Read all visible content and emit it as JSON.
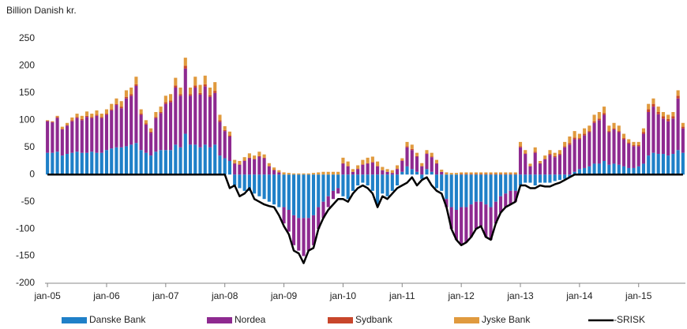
{
  "chart_data": {
    "type": "bar",
    "stacked": true,
    "title": "Billion Danish kr.",
    "categories": [
      "jan-05",
      null,
      null,
      null,
      null,
      null,
      null,
      null,
      null,
      null,
      null,
      null,
      "jan-06",
      null,
      null,
      null,
      null,
      null,
      null,
      null,
      null,
      null,
      null,
      null,
      "jan-07",
      null,
      null,
      null,
      null,
      null,
      null,
      null,
      null,
      null,
      null,
      null,
      "jan-08",
      null,
      null,
      null,
      null,
      null,
      null,
      null,
      null,
      null,
      null,
      null,
      "jan-09",
      null,
      null,
      null,
      null,
      null,
      null,
      null,
      null,
      null,
      null,
      null,
      "jan-10",
      null,
      null,
      null,
      null,
      null,
      null,
      null,
      null,
      null,
      null,
      null,
      "jan-11",
      null,
      null,
      null,
      null,
      null,
      null,
      null,
      null,
      null,
      null,
      null,
      "jan-12",
      null,
      null,
      null,
      null,
      null,
      null,
      null,
      null,
      null,
      null,
      null,
      "jan-13",
      null,
      null,
      null,
      null,
      null,
      null,
      null,
      null,
      null,
      null,
      null,
      "jan-14",
      null,
      null,
      null,
      null,
      null,
      null,
      null,
      null,
      null,
      null,
      null,
      "jan-15",
      null,
      null,
      null,
      null,
      null,
      null,
      null,
      null,
      null
    ],
    "series": [
      {
        "name": "Danske Bank",
        "color": "#1f80c8",
        "values": [
          40,
          40,
          42,
          35,
          38,
          40,
          42,
          40,
          40,
          42,
          40,
          40,
          45,
          48,
          50,
          50,
          52,
          55,
          58,
          45,
          40,
          35,
          42,
          45,
          45,
          45,
          55,
          50,
          75,
          55,
          55,
          50,
          55,
          50,
          55,
          35,
          30,
          25,
          -20,
          -25,
          -30,
          -30,
          -35,
          -40,
          -45,
          -50,
          -55,
          -60,
          -60,
          -65,
          -75,
          -80,
          -80,
          -80,
          -75,
          -60,
          -50,
          -40,
          -30,
          -25,
          -40,
          -45,
          -30,
          -20,
          -15,
          -20,
          -30,
          -55,
          -35,
          -40,
          -30,
          -20,
          5,
          15,
          10,
          5,
          -8,
          10,
          5,
          -25,
          -30,
          -45,
          -60,
          -65,
          -60,
          -60,
          -55,
          -50,
          -50,
          -55,
          -60,
          -50,
          -40,
          -35,
          -30,
          -30,
          -20,
          -15,
          -15,
          -20,
          -15,
          -15,
          -15,
          -12,
          -10,
          -8,
          -5,
          5,
          10,
          12,
          15,
          20,
          20,
          25,
          18,
          20,
          18,
          15,
          12,
          12,
          15,
          20,
          35,
          40,
          38,
          38,
          35,
          38,
          45,
          40
        ]
      },
      {
        "name": "Nordea",
        "color": "#8e2a90",
        "values": [
          58,
          56,
          62,
          48,
          52,
          58,
          62,
          60,
          66,
          62,
          68,
          64,
          65,
          70,
          78,
          72,
          88,
          90,
          105,
          65,
          52,
          42,
          62,
          68,
          85,
          88,
          105,
          95,
          120,
          90,
          105,
          97,
          107,
          93,
          95,
          62,
          50,
          45,
          20,
          18,
          25,
          30,
          28,
          33,
          30,
          15,
          8,
          4,
          -30,
          -40,
          -55,
          -60,
          -70,
          -60,
          -55,
          -40,
          -30,
          -20,
          -15,
          -10,
          20,
          15,
          5,
          10,
          18,
          20,
          22,
          15,
          8,
          5,
          3,
          10,
          20,
          35,
          35,
          28,
          15,
          28,
          27,
          20,
          5,
          -15,
          -40,
          -55,
          -70,
          -65,
          -60,
          -50,
          -45,
          -60,
          -60,
          -40,
          -30,
          -25,
          -25,
          -20,
          50,
          38,
          15,
          40,
          20,
          28,
          36,
          32,
          36,
          50,
          55,
          60,
          55,
          60,
          63,
          75,
          80,
          85,
          60,
          63,
          60,
          50,
          45,
          40,
          37,
          55,
          80,
          85,
          73,
          65,
          63,
          65,
          95,
          45
        ]
      },
      {
        "name": "Sydbank",
        "color": "#c8462b",
        "values": [
          1,
          1,
          2,
          1,
          1,
          2,
          2,
          2,
          2,
          2,
          2,
          2,
          2,
          2,
          2,
          3,
          3,
          3,
          3,
          2,
          2,
          2,
          2,
          2,
          3,
          3,
          4,
          3,
          5,
          3,
          4,
          3,
          4,
          3,
          4,
          3,
          2,
          2,
          1,
          1,
          1,
          1,
          1,
          1,
          1,
          1,
          1,
          0,
          0,
          0,
          0,
          0,
          0,
          0,
          0,
          0,
          0,
          0,
          0,
          0,
          1,
          1,
          0,
          1,
          1,
          1,
          1,
          1,
          0,
          0,
          0,
          1,
          1,
          2,
          2,
          1,
          1,
          1,
          1,
          1,
          0,
          0,
          0,
          0,
          1,
          1,
          1,
          1,
          1,
          1,
          1,
          1,
          1,
          1,
          1,
          1,
          2,
          1,
          1,
          2,
          1,
          1,
          2,
          2,
          2,
          2,
          3,
          3,
          2,
          3,
          2,
          3,
          3,
          3,
          2,
          2,
          2,
          2,
          2,
          2,
          2,
          3,
          5,
          5,
          4,
          4,
          4,
          4,
          5,
          3
        ]
      },
      {
        "name": "Jyske Bank",
        "color": "#e09a3e",
        "values": [
          1,
          1,
          2,
          4,
          4,
          5,
          6,
          6,
          8,
          6,
          8,
          6,
          8,
          10,
          10,
          10,
          12,
          12,
          14,
          8,
          6,
          6,
          9,
          10,
          12,
          12,
          14,
          12,
          15,
          12,
          16,
          15,
          16,
          14,
          16,
          10,
          7,
          7,
          6,
          6,
          6,
          8,
          6,
          8,
          6,
          5,
          4,
          4,
          4,
          3,
          2,
          2,
          2,
          2,
          3,
          4,
          5,
          5,
          5,
          5,
          10,
          8,
          5,
          6,
          8,
          10,
          10,
          8,
          6,
          5,
          5,
          6,
          4,
          8,
          8,
          6,
          5,
          6,
          7,
          6,
          4,
          4,
          3,
          3,
          3,
          3,
          3,
          3,
          3,
          3,
          3,
          3,
          3,
          3,
          3,
          3,
          8,
          6,
          4,
          8,
          4,
          6,
          7,
          6,
          7,
          8,
          12,
          12,
          8,
          10,
          10,
          12,
          12,
          12,
          10,
          10,
          10,
          8,
          6,
          6,
          6,
          7,
          10,
          10,
          10,
          8,
          8,
          8,
          10,
          7
        ]
      },
      {
        "name": "-SRISK",
        "type": "line",
        "color": "#000000",
        "values": [
          0,
          0,
          0,
          0,
          0,
          0,
          0,
          0,
          0,
          0,
          0,
          0,
          0,
          0,
          0,
          0,
          0,
          0,
          0,
          0,
          0,
          0,
          0,
          0,
          0,
          0,
          0,
          0,
          0,
          0,
          0,
          0,
          0,
          0,
          0,
          0,
          0,
          -25,
          -20,
          -40,
          -35,
          -25,
          -45,
          -50,
          -55,
          -58,
          -60,
          -75,
          -95,
          -110,
          -140,
          -145,
          -163,
          -140,
          -135,
          -100,
          -80,
          -65,
          -55,
          -45,
          -45,
          -50,
          -35,
          -25,
          -20,
          -25,
          -35,
          -60,
          -40,
          -45,
          -35,
          -25,
          -20,
          -15,
          -5,
          -20,
          -10,
          -5,
          -20,
          -30,
          -35,
          -60,
          -100,
          -120,
          -130,
          -125,
          -115,
          -100,
          -95,
          -115,
          -120,
          -90,
          -70,
          -60,
          -55,
          -50,
          -20,
          -20,
          -25,
          -25,
          -20,
          -22,
          -22,
          -18,
          -15,
          -10,
          -5,
          0,
          0,
          0,
          0,
          0,
          0,
          0,
          0,
          0,
          0,
          0,
          0,
          0,
          0,
          0,
          0,
          0,
          0,
          0,
          0,
          0,
          0,
          0
        ]
      }
    ],
    "ylim": [
      -200,
      250
    ],
    "yticks": [
      -200,
      -150,
      -100,
      -50,
      0,
      50,
      100,
      150,
      200,
      250
    ],
    "grid": false
  }
}
